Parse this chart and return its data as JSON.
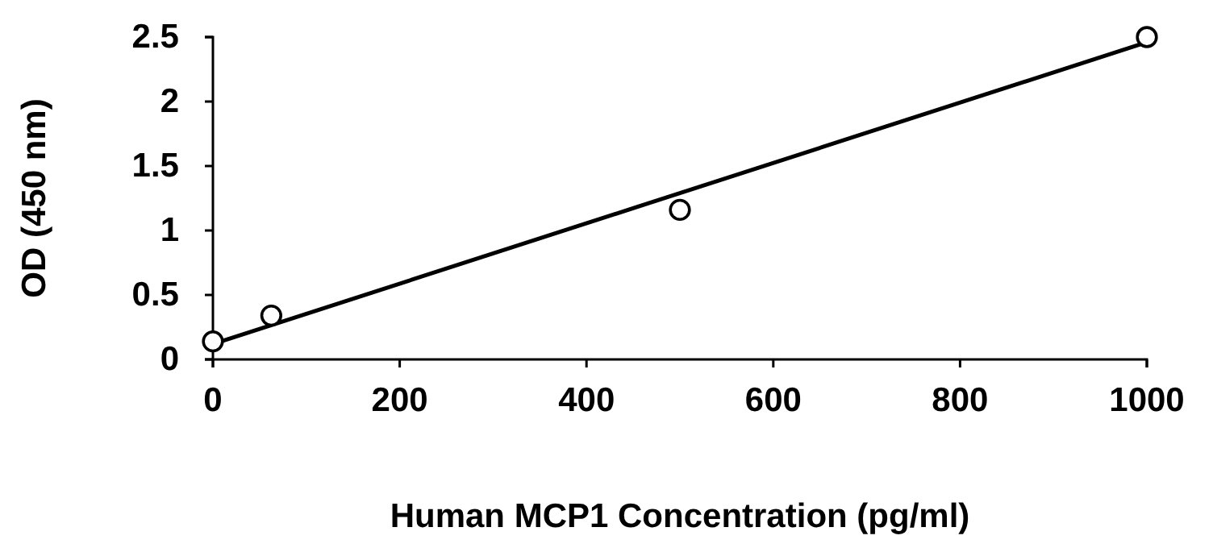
{
  "chart_data": {
    "type": "scatter",
    "xlabel": "Human MCP1 Concentration (pg/ml)",
    "ylabel": "OD (450 nm)",
    "xlim": [
      0,
      1000
    ],
    "xticks": [
      0,
      200,
      400,
      600,
      800,
      1000
    ],
    "ylim": [
      0,
      2.5
    ],
    "yticks": [
      0,
      0.5,
      1,
      1.5,
      2,
      2.5
    ],
    "grid": false,
    "marker": "circle",
    "series": [
      {
        "color": "#000000",
        "x": [
          0,
          62.5,
          500,
          1000
        ],
        "values": [
          0.14,
          0.34,
          1.16,
          2.5
        ]
      },
      {
        "type": "line",
        "color": "#000000",
        "line_style": "solid",
        "marker": "none",
        "x": [
          0,
          1000
        ],
        "values": [
          0.12,
          2.46
        ]
      }
    ]
  }
}
